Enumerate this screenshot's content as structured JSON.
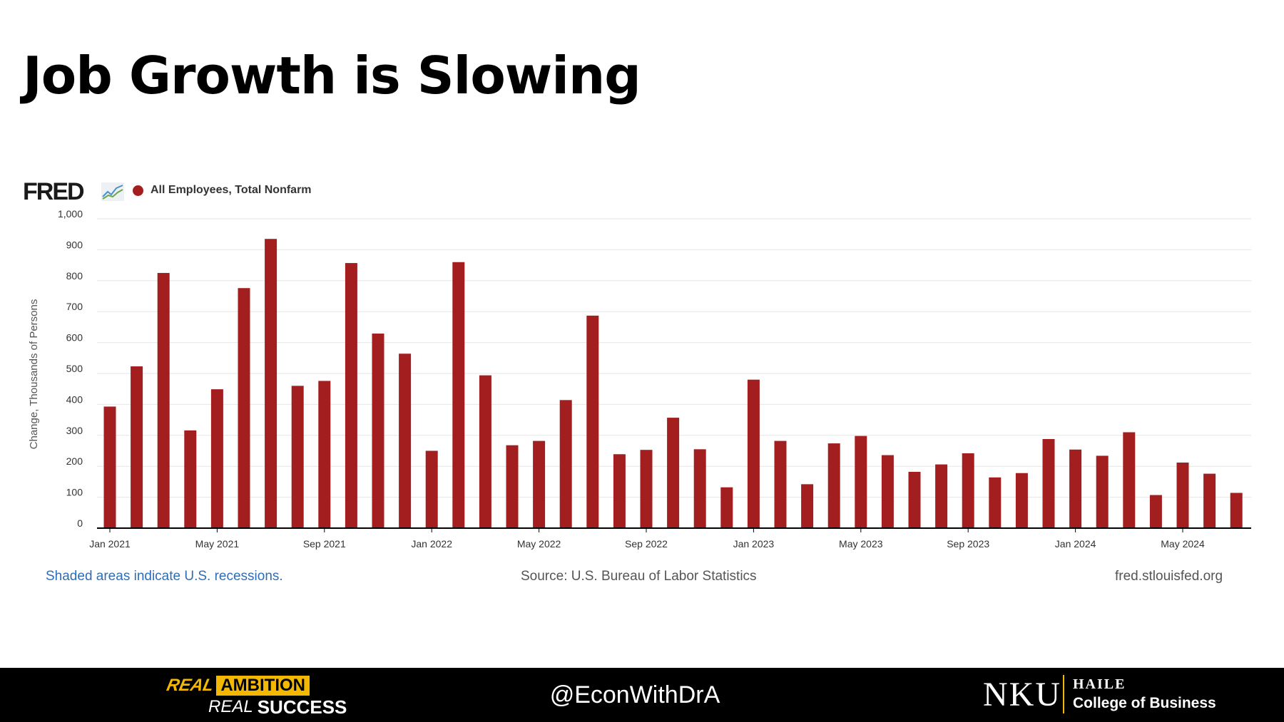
{
  "slide": {
    "title": "Job Growth is Slowing"
  },
  "fred": {
    "logo_text": "FRED",
    "site": "fred.stlouisfed.org",
    "recession_note": "Shaded areas indicate U.S. recessions.",
    "source_note": "Source: U.S. Bureau of Labor Statistics"
  },
  "colors": {
    "bar": "#a31f1f",
    "grid": "#e6e6e6",
    "axis": "#000000",
    "link": "#2f6db5",
    "footer_bg": "#000000",
    "brand_gold": "#f5b800"
  },
  "chart_data": {
    "type": "bar",
    "title": "",
    "xlabel": "",
    "ylabel": "Change, Thousands of Persons",
    "ylim": [
      0,
      1000
    ],
    "yticks": [
      0,
      100,
      200,
      300,
      400,
      500,
      600,
      700,
      800,
      900,
      1000
    ],
    "ytick_labels": [
      "0",
      "100",
      "200",
      "300",
      "400",
      "500",
      "600",
      "700",
      "800",
      "900",
      "1,000"
    ],
    "x_tick_labels": [
      {
        "index": 0,
        "label": "Jan 2021"
      },
      {
        "index": 4,
        "label": "May 2021"
      },
      {
        "index": 8,
        "label": "Sep 2021"
      },
      {
        "index": 12,
        "label": "Jan 2022"
      },
      {
        "index": 16,
        "label": "May 2022"
      },
      {
        "index": 20,
        "label": "Sep 2022"
      },
      {
        "index": 24,
        "label": "Jan 2023"
      },
      {
        "index": 28,
        "label": "May 2023"
      },
      {
        "index": 32,
        "label": "Sep 2023"
      },
      {
        "index": 36,
        "label": "Jan 2024"
      },
      {
        "index": 40,
        "label": "May 2024"
      }
    ],
    "legend": {
      "placement": "top-left"
    },
    "grid": true,
    "series": [
      {
        "name": "All Employees, Total Nonfarm",
        "categories": [
          "Jan 2021",
          "Feb 2021",
          "Mar 2021",
          "Apr 2021",
          "May 2021",
          "Jun 2021",
          "Jul 2021",
          "Aug 2021",
          "Sep 2021",
          "Oct 2021",
          "Nov 2021",
          "Dec 2021",
          "Jan 2022",
          "Feb 2022",
          "Mar 2022",
          "Apr 2022",
          "May 2022",
          "Jun 2022",
          "Jul 2022",
          "Aug 2022",
          "Sep 2022",
          "Oct 2022",
          "Nov 2022",
          "Dec 2022",
          "Jan 2023",
          "Feb 2023",
          "Mar 2023",
          "Apr 2023",
          "May 2023",
          "Jun 2023",
          "Jul 2023",
          "Aug 2023",
          "Sep 2023",
          "Oct 2023",
          "Nov 2023",
          "Dec 2023",
          "Jan 2024",
          "Feb 2024",
          "Mar 2024",
          "Apr 2024",
          "May 2024",
          "Jun 2024",
          "Jul 2024"
        ],
        "values": [
          393,
          523,
          825,
          316,
          449,
          776,
          935,
          460,
          476,
          857,
          629,
          564,
          250,
          860,
          494,
          268,
          282,
          414,
          687,
          239,
          253,
          357,
          255,
          132,
          480,
          282,
          142,
          274,
          298,
          236,
          182,
          206,
          242,
          164,
          178,
          288,
          254,
          234,
          310,
          107,
          212,
          176,
          114
        ]
      }
    ]
  },
  "footer": {
    "brand_left": {
      "word_real": "REAL",
      "word_ambition": "AMBITION",
      "word_real2": "REAL",
      "word_success": "SUCCESS"
    },
    "handle": "@EconWithDrA",
    "brand_right": {
      "logo": "NKU",
      "line1": "HAILE",
      "line2": "College of Business"
    }
  }
}
